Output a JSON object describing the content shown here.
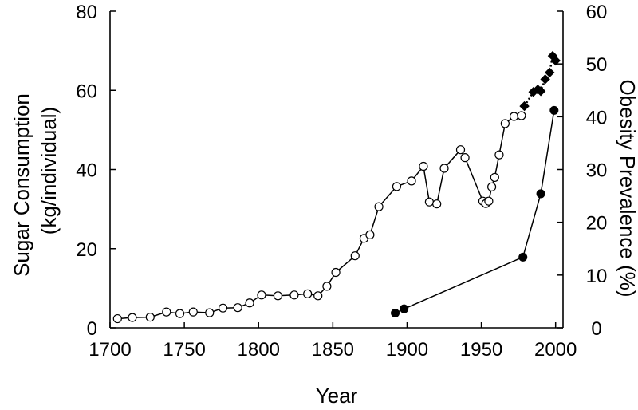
{
  "chart_data": {
    "type": "line",
    "xlabel": "Year",
    "ylabel_left": [
      "Sugar Consumption",
      "(kg/individual)"
    ],
    "ylabel_right": "Obesity Prevalence (%)",
    "xlim": [
      1700,
      2005
    ],
    "ylim_left": [
      0,
      80
    ],
    "ylim_right": [
      0,
      60
    ],
    "x_ticks": [
      "1700",
      "1750",
      "1800",
      "1850",
      "1900",
      "1950",
      "2000"
    ],
    "y_left_ticks": [
      "0",
      "20",
      "40",
      "60",
      "80"
    ],
    "y_right_ticks": [
      "0",
      "10",
      "20",
      "30",
      "40",
      "50",
      "60"
    ],
    "grid": false,
    "series": [
      {
        "axis": "left",
        "marker": "open-circle",
        "line": "solid",
        "x": [
          1705,
          1715,
          1727,
          1738,
          1747,
          1756,
          1767,
          1776,
          1786,
          1794,
          1802,
          1813,
          1824,
          1833,
          1840,
          1846,
          1852,
          1865,
          1871,
          1875,
          1881,
          1893,
          1903,
          1911,
          1915,
          1920,
          1925,
          1936,
          1939,
          1951,
          1953,
          1955,
          1957,
          1959,
          1962,
          1966,
          1972,
          1977
        ],
        "y": [
          2.3,
          2.6,
          2.7,
          4.0,
          3.6,
          4.0,
          3.8,
          5.0,
          5.1,
          6.3,
          8.3,
          8.1,
          8.3,
          8.6,
          8.1,
          10.5,
          14.0,
          18.2,
          22.6,
          23.5,
          30.6,
          35.7,
          37.1,
          40.8,
          31.8,
          31.3,
          40.3,
          45.0,
          43.0,
          32.0,
          31.4,
          32.0,
          35.6,
          38.0,
          43.7,
          51.6,
          53.4,
          53.6
        ]
      },
      {
        "axis": "left",
        "marker": "filled-diamond",
        "line": "dotted",
        "x": [
          1979,
          1985,
          1988,
          1990,
          1993,
          1996,
          1998,
          2000
        ],
        "y": [
          56.0,
          59.6,
          60.2,
          59.8,
          62.8,
          64.5,
          68.7,
          67.5
        ]
      },
      {
        "axis": "right",
        "marker": "filled-circle",
        "line": "solid",
        "x": [
          1892,
          1898,
          1978,
          1990,
          1999
        ],
        "y": [
          2.8,
          3.6,
          13.4,
          25.4,
          41.2
        ]
      }
    ]
  }
}
